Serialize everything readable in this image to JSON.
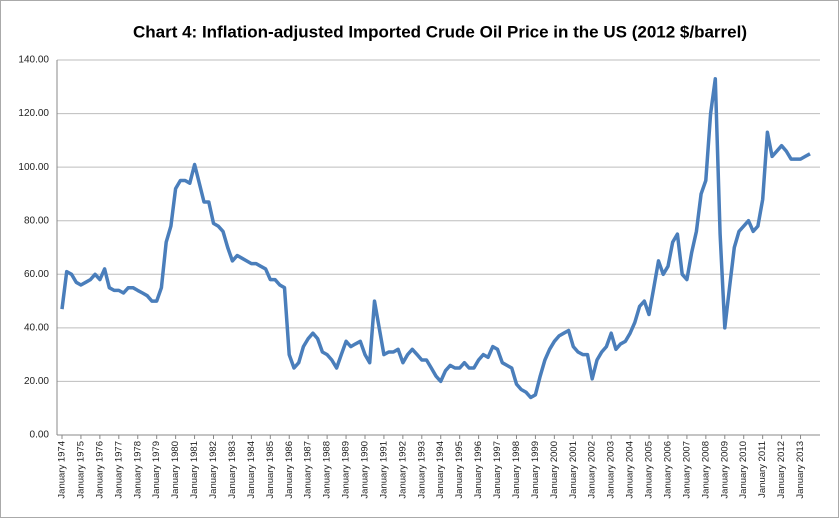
{
  "chart_data": {
    "type": "line",
    "title": "Chart 4: Inflation-adjusted Imported Crude Oil Price in the US (2012 $/barrel)",
    "categories": [
      "January 1974",
      null,
      null,
      null,
      "January 1975",
      null,
      null,
      null,
      "January 1976",
      null,
      null,
      null,
      "January 1977",
      null,
      null,
      null,
      "January 1978",
      null,
      null,
      null,
      "January 1979",
      null,
      null,
      null,
      "January 1980",
      null,
      null,
      null,
      "January 1981",
      null,
      null,
      null,
      "January 1982",
      null,
      null,
      null,
      "January 1983",
      null,
      null,
      null,
      "January 1984",
      null,
      null,
      null,
      "January 1985",
      null,
      null,
      null,
      "January 1986",
      null,
      null,
      null,
      "January 1987",
      null,
      null,
      null,
      "January 1988",
      null,
      null,
      null,
      "January 1989",
      null,
      null,
      null,
      "January 1990",
      null,
      null,
      null,
      "January 1991",
      null,
      null,
      null,
      "January 1992",
      null,
      null,
      null,
      "January 1993",
      null,
      null,
      null,
      "January 1994",
      null,
      null,
      null,
      "January 1995",
      null,
      null,
      null,
      "January 1996",
      null,
      null,
      null,
      "January 1997",
      null,
      null,
      null,
      "January 1998",
      null,
      null,
      null,
      "January 1999",
      null,
      null,
      null,
      "January 2000",
      null,
      null,
      null,
      "January 2001",
      null,
      null,
      null,
      "January 2002",
      null,
      null,
      null,
      "January 2003",
      null,
      null,
      null,
      "January 2004",
      null,
      null,
      null,
      "January 2005",
      null,
      null,
      null,
      "January 2006",
      null,
      null,
      null,
      "January 2007",
      null,
      null,
      null,
      "January 2008",
      null,
      null,
      null,
      "January 2009",
      null,
      null,
      null,
      "January 2010",
      null,
      null,
      null,
      "January 2011",
      null,
      null,
      null,
      "January 2012",
      null,
      null,
      null,
      "January 2013",
      null,
      null
    ],
    "series": [
      {
        "name": "Imported crude oil price",
        "color": "#4a7ebb",
        "values": [
          47,
          61,
          60,
          57,
          56,
          57,
          58,
          60,
          58,
          62,
          55,
          54,
          54,
          53,
          55,
          55,
          54,
          53,
          52,
          50,
          50,
          55,
          72,
          78,
          92,
          95,
          95,
          94,
          101,
          94,
          87,
          87,
          79,
          78,
          76,
          70,
          65,
          67,
          66,
          65,
          64,
          64,
          63,
          62,
          58,
          58,
          56,
          55,
          30,
          25,
          27,
          33,
          36,
          38,
          36,
          31,
          30,
          28,
          25,
          30,
          35,
          33,
          34,
          35,
          30,
          27,
          50,
          40,
          30,
          31,
          31,
          32,
          27,
          30,
          32,
          30,
          28,
          28,
          25,
          22,
          20,
          24,
          26,
          25,
          25,
          27,
          25,
          25,
          28,
          30,
          29,
          33,
          32,
          27,
          26,
          25,
          19,
          17,
          16,
          14,
          15,
          22,
          28,
          32,
          35,
          37,
          38,
          39,
          33,
          31,
          30,
          30,
          21,
          28,
          31,
          33,
          38,
          32,
          34,
          35,
          38,
          42,
          48,
          50,
          45,
          55,
          65,
          60,
          63,
          72,
          75,
          60,
          58,
          68,
          76,
          90,
          95,
          120,
          133,
          75,
          40,
          55,
          70,
          76,
          78,
          80,
          76,
          78,
          88,
          113,
          104,
          106,
          108,
          106,
          103,
          103,
          103,
          104,
          105
        ]
      }
    ],
    "ylim": [
      0,
      140
    ],
    "yticks": [
      {
        "value": 0,
        "label": "0.00"
      },
      {
        "value": 20,
        "label": "20.00"
      },
      {
        "value": 40,
        "label": "40.00"
      },
      {
        "value": 60,
        "label": "60.00"
      },
      {
        "value": 80,
        "label": "80.00"
      },
      {
        "value": 100,
        "label": "100.00"
      },
      {
        "value": 120,
        "label": "120.00"
      },
      {
        "value": 140,
        "label": "140.00"
      }
    ],
    "grid": true
  }
}
